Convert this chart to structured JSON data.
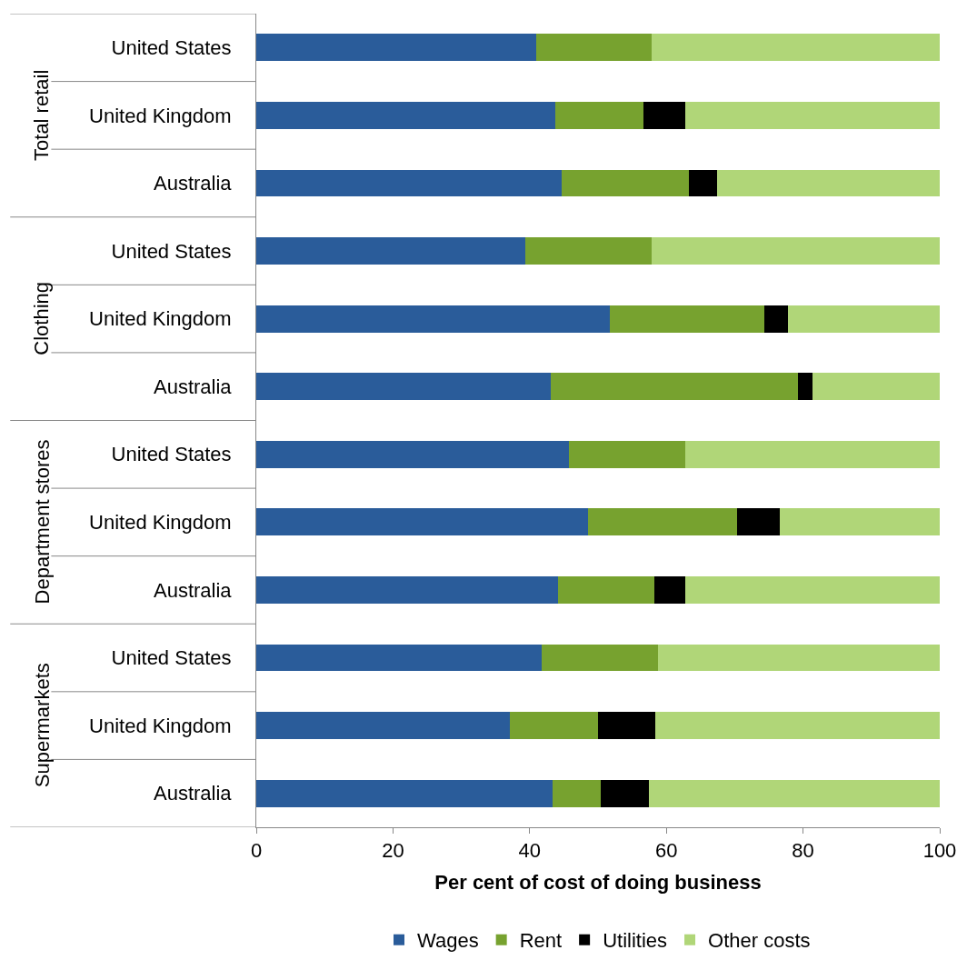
{
  "chart_data": {
    "type": "bar",
    "orientation": "horizontal",
    "stacked": true,
    "xlabel": "Per cent of cost of doing business",
    "categories": [
      "United States",
      "United Kingdom",
      "Australia",
      "United States",
      "United Kingdom",
      "Australia",
      "United States",
      "United Kingdom",
      "Australia",
      "United States",
      "United Kingdom",
      "Australia"
    ],
    "annotations": [
      "Total retail",
      "Clothing",
      "Department stores",
      "Supermarkets"
    ],
    "series": [
      {
        "name": "Wages",
        "color": "#2a5c9a",
        "values": [
          41.0,
          43.7,
          44.7,
          39.4,
          51.7,
          43.1,
          45.8,
          48.5,
          44.1,
          41.8,
          37.1,
          43.3
        ]
      },
      {
        "name": "Rent",
        "color": "#77a22f",
        "values": [
          16.9,
          13.0,
          18.6,
          18.5,
          22.6,
          36.1,
          17.0,
          21.9,
          14.2,
          17.0,
          12.9,
          7.1
        ]
      },
      {
        "name": "Utilities",
        "color": "#000000",
        "values": [
          null,
          6.1,
          4.1,
          null,
          3.5,
          2.2,
          null,
          6.2,
          4.4,
          null,
          8.4,
          7.1
        ]
      },
      {
        "name": "Other costs",
        "color": "#b0d678",
        "values": [
          42.1,
          37.2,
          32.6,
          42.1,
          22.2,
          18.6,
          37.2,
          23.4,
          37.3,
          41.2,
          41.6,
          42.5
        ]
      }
    ],
    "xlim": [
      0,
      100
    ],
    "xticks": [
      0,
      20,
      40,
      60,
      80,
      100
    ],
    "legend": "bottom"
  }
}
